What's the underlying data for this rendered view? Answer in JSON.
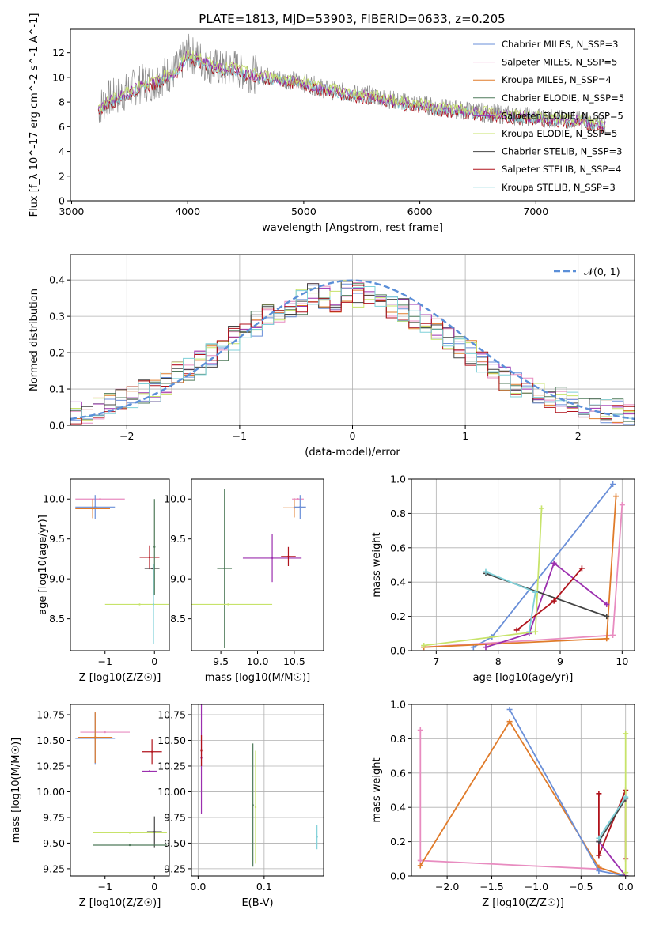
{
  "chart_data": [
    {
      "type": "line",
      "id": "spectrum",
      "title": "PLATE=1813, MJD=53903, FIBERID=0633, z=0.205",
      "xlabel": "wavelength [Angstrom, rest frame]",
      "ylabel": "Flux [f_λ 10^-17 erg cm^-2 s^-1 A^-1]",
      "xlim": [
        2990,
        7850
      ],
      "ylim": [
        0,
        13.9
      ],
      "xticks": [
        3000,
        4000,
        5000,
        6000,
        7000
      ],
      "yticks": [
        0,
        2,
        4,
        6,
        8,
        10,
        12
      ],
      "legend_position": "top-right",
      "series": [
        {
          "name": "Chabrier MILES, N_SSP=3",
          "color": "#6a8fd8"
        },
        {
          "name": "Salpeter MILES, N_SSP=5",
          "color": "#e88cc0"
        },
        {
          "name": "Kroupa MILES, N_SSP=4",
          "color": "#e07b2a"
        },
        {
          "name": "Chabrier ELODIE, N_SSP=5",
          "color": "#4f7a5a"
        },
        {
          "name": "Salpeter ELODIE, N_SSP=5",
          "color": "#9b2fae"
        },
        {
          "name": "Kroupa ELODIE, N_SSP=5",
          "color": "#c7e36a"
        },
        {
          "name": "Chabrier STELIB, N_SSP=3",
          "color": "#444444"
        },
        {
          "name": "Salpeter STELIB, N_SSP=4",
          "color": "#b0121b"
        },
        {
          "name": "Kroupa STELIB, N_SSP=3",
          "color": "#7fd0d8"
        }
      ],
      "data_series": {
        "name": "data",
        "color": "#8a8a8a",
        "x": [
          3230,
          3300,
          3400,
          3500,
          3600,
          3700,
          3800,
          3900,
          4000,
          4100,
          4200,
          4300,
          4400,
          4500,
          4600,
          4800,
          5000,
          5200,
          5400,
          5600,
          5800,
          6000,
          6200,
          6400,
          6600,
          6800,
          7000,
          7200,
          7400,
          7600
        ],
        "y": [
          7.5,
          8.2,
          8.5,
          9.0,
          9.5,
          9.6,
          10.2,
          10.5,
          12.0,
          11.5,
          11.0,
          10.6,
          10.8,
          10.4,
          10.2,
          9.9,
          9.6,
          9.0,
          8.7,
          8.5,
          8.1,
          7.8,
          7.5,
          7.3,
          7.1,
          6.9,
          6.8,
          6.6,
          6.5,
          6.2
        ]
      },
      "model_curve": {
        "x": [
          3230,
          3300,
          3400,
          3500,
          3600,
          3700,
          3800,
          3900,
          4000,
          4100,
          4200,
          4300,
          4400,
          4500,
          4600,
          4800,
          5000,
          5200,
          5400,
          5600,
          5800,
          6000,
          6200,
          6400,
          6600,
          6800,
          7000,
          7200,
          7400,
          7600
        ],
        "y": [
          7.3,
          7.9,
          8.3,
          8.8,
          9.3,
          9.5,
          10.0,
          10.4,
          11.8,
          11.4,
          11.0,
          10.6,
          10.7,
          10.3,
          10.1,
          9.8,
          9.5,
          9.0,
          8.6,
          8.4,
          8.0,
          7.7,
          7.4,
          7.2,
          7.0,
          6.8,
          6.7,
          6.5,
          6.4,
          6.1
        ]
      }
    },
    {
      "type": "line",
      "id": "residuals",
      "xlabel": "(data-model)/error",
      "ylabel": "Normed distribution",
      "xlim": [
        -2.5,
        2.5
      ],
      "ylim": [
        0,
        0.47
      ],
      "xticks": [
        -2,
        -1,
        0,
        1,
        2
      ],
      "yticks": [
        0.0,
        0.1,
        0.2,
        0.3,
        0.4
      ],
      "grid": true,
      "legend_position": "top-right",
      "reference": {
        "name": "𝒩(0, 1)",
        "color": "#5b8fd8",
        "mean": 0,
        "sigma": 1
      },
      "histogram_bin_centers": [
        -2.45,
        -2.35,
        -2.25,
        -2.15,
        -2.05,
        -1.95,
        -1.85,
        -1.75,
        -1.65,
        -1.55,
        -1.45,
        -1.35,
        -1.25,
        -1.15,
        -1.05,
        -0.95,
        -0.85,
        -0.75,
        -0.65,
        -0.55,
        -0.45,
        -0.35,
        -0.25,
        -0.15,
        -0.05,
        0.05,
        0.15,
        0.25,
        0.35,
        0.45,
        0.55,
        0.65,
        0.75,
        0.85,
        0.95,
        1.05,
        1.15,
        1.25,
        1.35,
        1.45,
        1.55,
        1.65,
        1.75,
        1.85,
        1.95,
        2.05,
        2.15,
        2.25,
        2.35,
        2.45
      ],
      "histogram_envelope": [
        0.03,
        0.04,
        0.05,
        0.06,
        0.07,
        0.08,
        0.09,
        0.1,
        0.12,
        0.14,
        0.15,
        0.17,
        0.19,
        0.21,
        0.24,
        0.26,
        0.28,
        0.3,
        0.31,
        0.33,
        0.34,
        0.36,
        0.35,
        0.34,
        0.37,
        0.36,
        0.35,
        0.34,
        0.33,
        0.32,
        0.3,
        0.29,
        0.27,
        0.24,
        0.22,
        0.2,
        0.17,
        0.15,
        0.13,
        0.11,
        0.1,
        0.09,
        0.08,
        0.07,
        0.06,
        0.05,
        0.05,
        0.04,
        0.04,
        0.03
      ]
    },
    {
      "type": "scatter",
      "id": "Z-age",
      "xlabel": "Z [log10(Z/Z☉)]",
      "ylabel": "age  [log10(age/yr)]",
      "xlim": [
        -1.7,
        0.3
      ],
      "ylim": [
        8.1,
        10.25
      ],
      "xticks": [
        -1,
        0
      ],
      "yticks": [
        8.5,
        9.0,
        9.5,
        10.0
      ],
      "points": [
        {
          "series": "Salpeter MILES",
          "x": -1.1,
          "y": 10.0,
          "xerr": 0.5,
          "yerr": 0.0
        },
        {
          "series": "Chabrier MILES",
          "x": -1.2,
          "y": 9.9,
          "xerr": 0.4,
          "yerr": 0.15
        },
        {
          "series": "Kroupa MILES",
          "x": -1.25,
          "y": 9.88,
          "xerr": 0.35,
          "yerr": 0.12
        },
        {
          "series": "Kroupa ELODIE",
          "x": -0.3,
          "y": 8.68,
          "xerr": 0.7,
          "yerr": 0.0
        },
        {
          "series": "Salpeter STELIB",
          "x": -0.1,
          "y": 9.27,
          "xerr": 0.2,
          "yerr": 0.15
        },
        {
          "series": "Chabrier STELIB",
          "x": -0.05,
          "y": 9.13,
          "xerr": 0.15,
          "yerr": 0.0
        },
        {
          "series": "Kroupa STELIB",
          "x": -0.02,
          "y": 8.68,
          "xerr": 0.0,
          "yerr": 0.5
        },
        {
          "series": "Chabrier ELODIE",
          "x": 0.0,
          "y": 9.4,
          "xerr": 0.0,
          "yerr": 0.6
        }
      ]
    },
    {
      "type": "scatter",
      "id": "mass-age",
      "xlabel": "mass [log10(M/M☉)]",
      "ylabel": "",
      "xlim": [
        9.1,
        10.9
      ],
      "ylim": [
        8.1,
        10.25
      ],
      "xticks": [
        9.5,
        10.0,
        10.5
      ],
      "yticks": [
        8.5,
        9.0,
        9.5,
        10.0
      ],
      "points": [
        {
          "series": "Chabrier ELODIE",
          "x": 9.55,
          "y": 9.13,
          "xerr": 0.1,
          "yerr": 1.0
        },
        {
          "series": "Kroupa ELODIE",
          "x": 9.6,
          "y": 8.68,
          "xerr": 0.6,
          "yerr": 0.0
        },
        {
          "series": "Salpeter ELODIE",
          "x": 10.2,
          "y": 9.26,
          "xerr": 0.4,
          "yerr": 0.3
        },
        {
          "series": "Salpeter STELIB",
          "x": 10.42,
          "y": 9.28,
          "xerr": 0.1,
          "yerr": 0.12
        },
        {
          "series": "Kroupa MILES",
          "x": 10.5,
          "y": 9.89,
          "xerr": 0.15,
          "yerr": 0.12
        },
        {
          "series": "Salpeter MILES",
          "x": 10.55,
          "y": 10.0,
          "xerr": 0.08,
          "yerr": 0.0
        },
        {
          "series": "Chabrier MILES",
          "x": 10.58,
          "y": 9.9,
          "xerr": 0.08,
          "yerr": 0.15
        }
      ]
    },
    {
      "type": "line",
      "id": "age-weight",
      "xlabel": "age  [log10(age/yr)]",
      "ylabel": "mass weight",
      "xlim": [
        6.6,
        10.2
      ],
      "ylim": [
        0,
        1.0
      ],
      "xticks": [
        7,
        8,
        9,
        10
      ],
      "yticks": [
        0.0,
        0.2,
        0.4,
        0.6,
        0.8,
        1.0
      ],
      "grid": true,
      "series": [
        {
          "name": "Chabrier MILES",
          "x": [
            7.6,
            7.9,
            9.85
          ],
          "y": [
            0.02,
            0.08,
            0.97
          ]
        },
        {
          "name": "Salpeter MILES",
          "x": [
            6.8,
            9.85,
            10.0
          ],
          "y": [
            0.02,
            0.09,
            0.85
          ]
        },
        {
          "name": "Kroupa MILES",
          "x": [
            6.8,
            9.75,
            9.9
          ],
          "y": [
            0.02,
            0.07,
            0.9
          ]
        },
        {
          "name": "Salpeter ELODIE",
          "x": [
            7.8,
            8.5,
            8.9,
            9.75
          ],
          "y": [
            0.02,
            0.1,
            0.51,
            0.27
          ]
        },
        {
          "name": "Kroupa ELODIE",
          "x": [
            6.8,
            8.6,
            8.7
          ],
          "y": [
            0.03,
            0.11,
            0.83
          ]
        },
        {
          "name": "Chabrier STELIB",
          "x": [
            7.8,
            9.75
          ],
          "y": [
            0.45,
            0.2
          ]
        },
        {
          "name": "Salpeter STELIB",
          "x": [
            8.3,
            8.9,
            9.35
          ],
          "y": [
            0.12,
            0.29,
            0.48
          ]
        },
        {
          "name": "Kroupa STELIB",
          "x": [
            7.8,
            8.6,
            8.5
          ],
          "y": [
            0.46,
            0.34,
            0.11
          ]
        }
      ]
    },
    {
      "type": "scatter",
      "id": "Z-mass",
      "xlabel": "Z [log10(Z/Z☉)]",
      "ylabel": "mass [log10(M/M☉)]",
      "xlim": [
        -1.7,
        0.3
      ],
      "ylim": [
        9.18,
        10.85
      ],
      "xticks": [
        -1,
        0
      ],
      "yticks": [
        9.25,
        9.5,
        9.75,
        10.0,
        10.25,
        10.5,
        10.75
      ],
      "points": [
        {
          "series": "Salpeter MILES",
          "x": -1.0,
          "y": 10.58,
          "xerr": 0.5,
          "yerr": 0.0
        },
        {
          "series": "Chabrier MILES",
          "x": -1.2,
          "y": 10.52,
          "xerr": 0.4,
          "yerr": 0.25
        },
        {
          "series": "Kroupa MILES",
          "x": -1.2,
          "y": 10.53,
          "xerr": 0.35,
          "yerr": 0.25
        },
        {
          "series": "Salpeter STELIB",
          "x": -0.05,
          "y": 10.39,
          "xerr": 0.2,
          "yerr": 0.12
        },
        {
          "series": "Salpeter ELODIE",
          "x": -0.1,
          "y": 10.2,
          "xerr": 0.15,
          "yerr": 0.0
        },
        {
          "series": "Kroupa ELODIE",
          "x": -0.5,
          "y": 9.6,
          "xerr": 0.75,
          "yerr": 0.0
        },
        {
          "series": "Chabrier STELIB",
          "x": 0.0,
          "y": 9.61,
          "xerr": 0.15,
          "yerr": 0.15
        },
        {
          "series": "Chabrier ELODIE",
          "x": -0.5,
          "y": 9.48,
          "xerr": 0.75,
          "yerr": 0.0
        }
      ]
    },
    {
      "type": "scatter",
      "id": "EBV-mass",
      "xlabel": "E(B-V)",
      "ylabel": "",
      "xlim": [
        -0.01,
        0.19
      ],
      "ylim": [
        9.18,
        10.85
      ],
      "xticks": [
        0.0,
        0.1
      ],
      "yticks": [
        9.25,
        9.5,
        9.75,
        10.0,
        10.25,
        10.5,
        10.75
      ],
      "grid": true,
      "points": [
        {
          "series": "Salpeter ELODIE",
          "x": 0.005,
          "y": 10.33,
          "xerr": 0.0,
          "yerr": 0.55
        },
        {
          "series": "Salpeter STELIB",
          "x": 0.005,
          "y": 10.4,
          "xerr": 0.0,
          "yerr": 0.15
        },
        {
          "series": "Chabrier ELODIE",
          "x": 0.083,
          "y": 9.87,
          "xerr": 0.0,
          "yerr": 0.6
        },
        {
          "series": "Kroupa ELODIE",
          "x": 0.087,
          "y": 9.85,
          "xerr": 0.0,
          "yerr": 0.55
        },
        {
          "series": "Kroupa STELIB",
          "x": 0.18,
          "y": 9.56,
          "xerr": 0.0,
          "yerr": 0.12
        }
      ]
    },
    {
      "type": "line",
      "id": "Z-weight",
      "xlabel": "Z [log10(Z/Z☉)]",
      "ylabel": "mass weight",
      "xlim": [
        -2.4,
        0.1
      ],
      "ylim": [
        0,
        1.0
      ],
      "xticks": [
        -2.0,
        -1.5,
        -1.0,
        -0.5,
        0.0
      ],
      "yticks": [
        0.0,
        0.2,
        0.4,
        0.6,
        0.8,
        1.0
      ],
      "grid": true,
      "series": [
        {
          "name": "Salpeter MILES",
          "x": [
            -2.3,
            -2.3,
            -0.3
          ],
          "y": [
            0.85,
            0.09,
            0.04
          ]
        },
        {
          "name": "Kroupa MILES",
          "x": [
            -2.3,
            -1.3,
            -0.3,
            0.0
          ],
          "y": [
            0.06,
            0.9,
            0.05,
            0.0
          ]
        },
        {
          "name": "Chabrier MILES",
          "x": [
            -1.3,
            -0.3,
            0.0
          ],
          "y": [
            0.97,
            0.03,
            0.0
          ]
        },
        {
          "name": "Salpeter STELIB",
          "x": [
            -0.3,
            -0.3,
            0.0,
            0.0
          ],
          "y": [
            0.48,
            0.12,
            0.5,
            0.1
          ]
        },
        {
          "name": "Salpeter ELODIE",
          "x": [
            -0.3,
            0.0
          ],
          "y": [
            0.2,
            0.0
          ]
        },
        {
          "name": "Kroupa ELODIE",
          "x": [
            0.0,
            0.0
          ],
          "y": [
            0.83,
            0.02
          ]
        },
        {
          "name": "Chabrier STELIB",
          "x": [
            -0.3,
            0.0
          ],
          "y": [
            0.2,
            0.45
          ]
        },
        {
          "name": "Kroupa STELIB",
          "x": [
            -0.3,
            0.0
          ],
          "y": [
            0.22,
            0.46
          ]
        }
      ]
    }
  ]
}
